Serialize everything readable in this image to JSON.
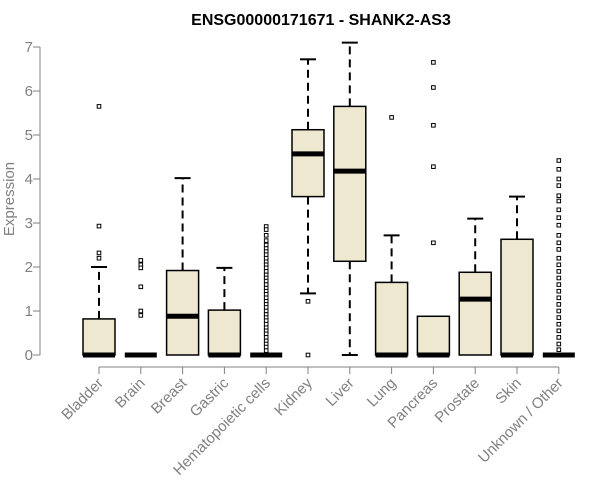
{
  "chart_data": {
    "type": "boxplot",
    "title": "ENSG00000171671 - SHANK2-AS3",
    "xlabel": "",
    "ylabel": "Expression",
    "ylim": [
      0,
      7
    ],
    "yticks": [
      0,
      1,
      2,
      3,
      4,
      5,
      6,
      7
    ],
    "colors": {
      "box_fill": "#EEE8D0",
      "stroke": "#000000",
      "axis": "#808080"
    },
    "categories": [
      "Bladder",
      "Brain",
      "Breast",
      "Gastric",
      "Hematopoietic cells",
      "Kidney",
      "Liver",
      "Lung",
      "Pancreas",
      "Prostate",
      "Skin",
      "Unknown / Other"
    ],
    "series": [
      {
        "name": "Bladder",
        "min": 0,
        "q1": 0,
        "median": 0,
        "q3": 0.82,
        "max": 2.0,
        "outliers": [
          5.65,
          2.93,
          2.32,
          2.2
        ]
      },
      {
        "name": "Brain",
        "min": 0,
        "q1": 0,
        "median": 0,
        "q3": 0,
        "max": 0,
        "outliers": [
          2.15,
          2.05,
          1.98,
          1.55,
          1.0,
          0.9
        ]
      },
      {
        "name": "Breast",
        "min": 0,
        "q1": 0,
        "median": 0.88,
        "q3": 1.92,
        "max": 4.02,
        "outliers": []
      },
      {
        "name": "Gastric",
        "min": 0,
        "q1": 0,
        "median": 0,
        "q3": 1.02,
        "max": 1.98,
        "outliers": []
      },
      {
        "name": "Hematopoietic cells",
        "min": 0,
        "q1": 0,
        "median": 0,
        "q3": 0,
        "max": 0,
        "outliers": [
          2.92,
          2.85,
          2.72,
          2.6,
          2.5,
          2.42,
          2.35,
          2.28,
          2.2,
          2.12,
          2.05,
          1.98,
          1.9,
          1.82,
          1.75,
          1.68,
          1.6,
          1.52,
          1.45,
          1.38,
          1.3,
          1.22,
          1.15,
          1.08,
          1.0,
          0.92,
          0.85,
          0.78,
          0.7,
          0.62,
          0.55,
          0.48,
          0.4,
          0.32,
          0.25,
          0.18,
          0.1
        ]
      },
      {
        "name": "Kidney",
        "min": 1.4,
        "q1": 3.6,
        "median": 4.57,
        "q3": 5.12,
        "max": 6.72,
        "outliers": [
          1.22,
          0
        ]
      },
      {
        "name": "Liver",
        "min": 0,
        "q1": 2.13,
        "median": 4.18,
        "q3": 5.65,
        "max": 7.1,
        "outliers": []
      },
      {
        "name": "Lung",
        "min": 0,
        "q1": 0,
        "median": 0,
        "q3": 1.65,
        "max": 2.72,
        "outliers": [
          5.4
        ]
      },
      {
        "name": "Pancreas",
        "min": 0,
        "q1": 0,
        "median": 0,
        "q3": 0.88,
        "max": 0.88,
        "outliers": [
          6.65,
          6.08,
          5.22,
          4.28,
          2.55
        ]
      },
      {
        "name": "Prostate",
        "min": 0,
        "q1": 0,
        "median": 1.27,
        "q3": 1.88,
        "max": 3.1,
        "outliers": []
      },
      {
        "name": "Skin",
        "min": 0,
        "q1": 0,
        "median": 0,
        "q3": 2.63,
        "max": 3.6,
        "outliers": []
      },
      {
        "name": "Unknown / Other",
        "min": 0,
        "q1": 0,
        "median": 0,
        "q3": 0,
        "max": 0,
        "outliers": [
          4.42,
          4.22,
          4.0,
          3.85,
          3.62,
          3.5,
          3.3,
          3.12,
          2.95,
          2.72,
          2.55,
          2.4,
          2.2,
          2.05,
          1.9,
          1.75,
          1.6,
          1.45,
          1.3,
          1.15,
          1.0,
          0.85,
          0.7,
          0.55,
          0.4,
          0.25,
          0.12
        ]
      }
    ]
  }
}
